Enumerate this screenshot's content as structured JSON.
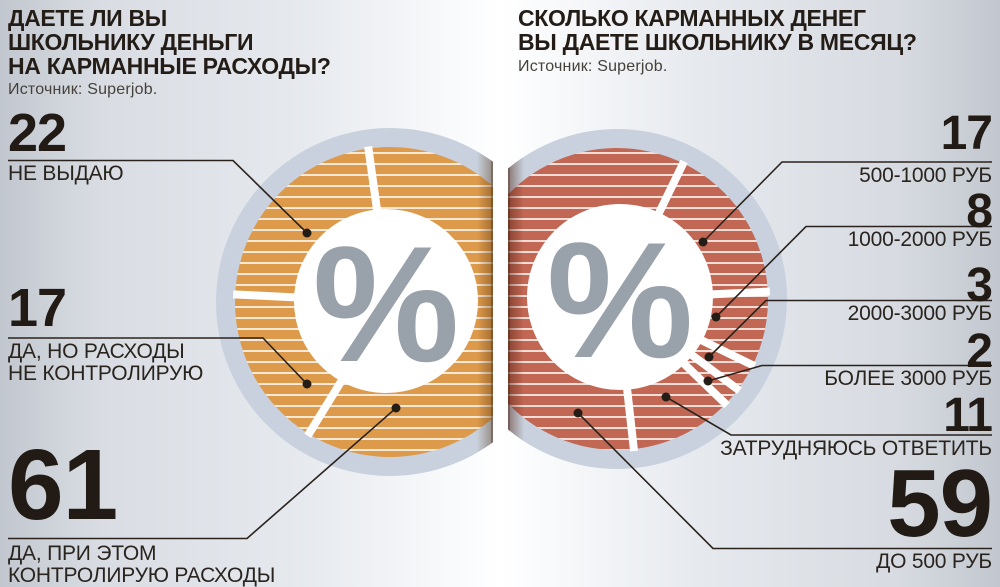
{
  "left_chart": {
    "title": "ДАЕТЕ ЛИ ВЫ\nШКОЛЬНИКУ ДЕНЬГИ\nНА КАРМАННЫЕ РАСХОДЫ?",
    "source": "Источник: Superjob.",
    "center_symbol": "%",
    "items": [
      {
        "value": "22",
        "label": "НЕ ВЫДАЮ"
      },
      {
        "value": "17",
        "label": "ДА, НО РАСХОДЫ\nНЕ КОНТРОЛИРУЮ"
      },
      {
        "value": "61",
        "label": "ДА, ПРИ ЭТОМ\nКОНТРОЛИРУЮ РАСХОДЫ"
      }
    ]
  },
  "right_chart": {
    "title": "СКОЛЬКО КАРМАННЫХ ДЕНЕГ\nВЫ ДАЕТЕ ШКОЛЬНИКУ В МЕСЯЦ?",
    "source": "Источник: Superjob.",
    "center_symbol": "%",
    "items": [
      {
        "value": "17",
        "label": "500-1000 РУБ"
      },
      {
        "value": "8",
        "label": "1000-2000 РУБ"
      },
      {
        "value": "3",
        "label": "2000-3000 РУБ"
      },
      {
        "value": "2",
        "label": "БОЛЕЕ 3000 РУБ"
      },
      {
        "value": "11",
        "label": "ЗАТРУДНЯЮСЬ ОТВЕТИТЬ"
      },
      {
        "value": "59",
        "label": "ДО 500 РУБ"
      }
    ]
  },
  "chart_data": [
    {
      "type": "pie",
      "title": "ДАЕТЕ ЛИ ВЫ ШКОЛЬНИКУ ДЕНЬГИ НА КАРМАННЫЕ РАСХОДЫ?",
      "source": "Источник: Superjob.",
      "unit": "%",
      "categories": [
        "НЕ ВЫДАЮ",
        "ДА, НО РАСХОДЫ НЕ КОНТРОЛИРУЮ",
        "ДА, ПРИ ЭТОМ КОНТРОЛИРУЮ РАСХОДЫ"
      ],
      "values": [
        22,
        17,
        61
      ],
      "color": "#dd9a4b",
      "center_label": "%",
      "start_angle": -8,
      "draw_order": [
        2,
        1,
        0
      ],
      "legend_position": "left-callouts",
      "style": "striped donut, white slice gaps, clipped at page fold"
    },
    {
      "type": "pie",
      "title": "СКОЛЬКО КАРМАННЫХ ДЕНЕГ ВЫ ДАЕТЕ ШКОЛЬНИКУ В МЕСЯЦ?",
      "source": "Источник: Superjob.",
      "unit": "%",
      "categories": [
        "500-1000 РУБ",
        "1000-2000 РУБ",
        "2000-3000 РУБ",
        "БОЛЕЕ 3000 РУБ",
        "ЗАТРУДНЯЮСЬ ОТВЕТИТЬ",
        "ДО 500 РУБ"
      ],
      "values": [
        17,
        8,
        3,
        2,
        11,
        59
      ],
      "color": "#c16753",
      "center_label": "%",
      "start_angle": 26,
      "draw_order": [
        0,
        1,
        2,
        3,
        4,
        5
      ],
      "legend_position": "right-callouts",
      "style": "striped donut, white slice gaps, clipped at page fold"
    }
  ],
  "colors": {
    "left_pie": "#dd9a4b",
    "right_pie": "#c16753",
    "pale_ring": "#c8d1dd",
    "percent_symbol": "#99a1aa",
    "text": "#241d17",
    "callout_line": "#2a231d"
  }
}
